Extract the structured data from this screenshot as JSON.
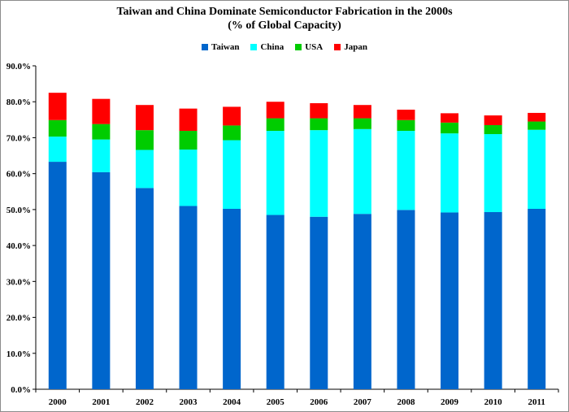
{
  "chart_data": {
    "type": "bar",
    "stacked": true,
    "title_line1": "Taiwan and China Dominate Semiconductor Fabrication in the 2000s",
    "title_line2": "(% of Global Capacity)",
    "xlabel": "",
    "ylabel": "",
    "ylim": [
      0,
      90
    ],
    "ytick_labels": [
      "0.0%",
      "10.0%",
      "20.0%",
      "30.0%",
      "40.0%",
      "50.0%",
      "60.0%",
      "70.0%",
      "80.0%",
      "90.0%"
    ],
    "legend_position": "top-center",
    "grid": false,
    "categories": [
      "2000",
      "2001",
      "2002",
      "2003",
      "2004",
      "2005",
      "2006",
      "2007",
      "2008",
      "2009",
      "2010",
      "2011"
    ],
    "series": [
      {
        "name": "Taiwan",
        "color": "#0066cc",
        "values": [
          63.3,
          60.4,
          56.0,
          51.0,
          50.2,
          48.5,
          48.0,
          48.8,
          49.9,
          49.2,
          49.3,
          50.2
        ]
      },
      {
        "name": "China",
        "color": "#00ffff",
        "values": [
          7.0,
          9.1,
          10.6,
          15.7,
          19.1,
          23.4,
          24.1,
          23.6,
          22.0,
          22.0,
          21.7,
          22.0
        ]
      },
      {
        "name": "USA",
        "color": "#00cc00",
        "values": [
          4.6,
          4.3,
          5.5,
          5.2,
          4.1,
          3.5,
          3.3,
          3.0,
          3.0,
          3.0,
          2.5,
          2.3
        ]
      },
      {
        "name": "Japan",
        "color": "#ff0000",
        "values": [
          7.6,
          7.0,
          7.0,
          6.2,
          5.2,
          4.6,
          4.2,
          3.7,
          2.9,
          2.6,
          2.7,
          2.4
        ]
      }
    ]
  }
}
